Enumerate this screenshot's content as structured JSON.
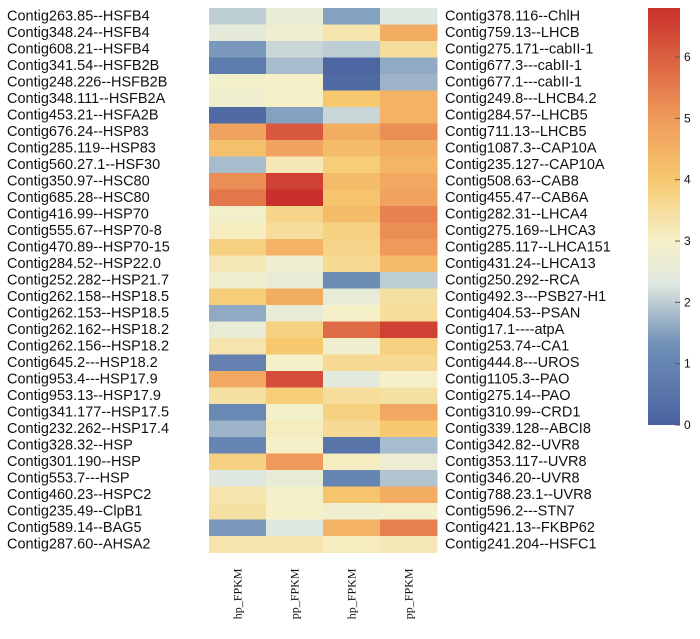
{
  "chart_data": {
    "type": "heatmap",
    "title": "",
    "columns": [
      "hp_FPKM",
      "pp_FPKM",
      "hp_FPKM",
      "pp_FPKM"
    ],
    "color_scale": {
      "min": 0,
      "max": 6.8,
      "ticks": [
        0,
        1,
        2,
        3,
        4,
        5,
        6
      ],
      "stops": [
        {
          "v": 0,
          "color": "#4a63a0"
        },
        {
          "v": 1.3,
          "color": "#6f8fb8"
        },
        {
          "v": 2.3,
          "color": "#dfe8e0"
        },
        {
          "v": 3.0,
          "color": "#f5f0c8"
        },
        {
          "v": 4.0,
          "color": "#f6c96f"
        },
        {
          "v": 5.0,
          "color": "#ef9a5a"
        },
        {
          "v": 6.8,
          "color": "#c9302b"
        }
      ]
    },
    "left_labels": [
      "Contig263.85--HSFB4",
      "Contig348.24--HSFB4",
      "Contig608.21--HSFB4",
      "Contig341.54--HSFB2B",
      "Contig248.226--HSFB2B",
      "Contig348.111--HSFB2A",
      "Contig453.21--HSFA2B",
      "Contig676.24--HSP83",
      "Contig285.119--HSP83",
      "Contig560.27.1--HSF30",
      "Contig350.97--HSC80",
      "Contig685.28--HSC80",
      "Contig416.99--HSP70",
      "Contig555.67--HSP70-8",
      "Contig470.89--HSP70-15",
      "Contig284.52--HSP22.0",
      "Contig252.282--HSP21.7",
      "Contig262.158--HSP18.5",
      "Contig262.153--HSP18.5",
      "Contig262.162--HSP18.2",
      "Contig262.156--HSP18.2",
      "Contig645.2---HSP18.2",
      "Contig953.4---HSP17.9",
      "Contig953.13--HSP17.9",
      "Contig341.177--HSP17.5",
      "Contig232.262--HSP17.4",
      "Contig328.32--HSP",
      "Contig301.190--HSP",
      "Contig553.7---HSP",
      "Contig460.23--HSPC2",
      "Contig235.49--ClpB1",
      "Contig589.14--BAG5",
      "Contig287.60--AHSA2"
    ],
    "right_labels": [
      "Contig378.116--ChlH",
      "Contig759.13--LHCB",
      "Contig275.171--cabII-1",
      "Contig677.3---cabII-1",
      "Contig677.1---cabII-1",
      "Contig249.8---LHCB4.2",
      "Contig284.57--LHCB5",
      "Contig711.13--LHCB5",
      "Contig1087.3--CAP10A",
      "Contig235.127--CAP10A",
      "Contig508.63--CAB8",
      "Contig455.47--CAB6A",
      "Contig282.31--LHCA4",
      "Contig275.169--LHCA3",
      "Contig285.117--LHCA151",
      "Contig431.24--LHCA13",
      "Contig250.292--RCA",
      "Contig492.3---PSB27-H1",
      "Contig404.53--PSAN",
      "Contig17.1----atpA",
      "Contig253.74--CA1",
      "Contig444.8---UROS",
      "Contig1105.3--PAO",
      "Contig275.14--PAO",
      "Contig310.99--CRD1",
      "Contig339.128--ABCI8",
      "Contig342.82--UVR8",
      "Contig353.117--UVR8",
      "Contig346.20--UVR8",
      "Contig788.23.1--UVR8",
      "Contig596.2---STN7",
      "Contig421.13--FKBP62",
      "Contig241.204--HSFC1"
    ],
    "values": [
      [
        2.0,
        2.6,
        1.5,
        2.3
      ],
      [
        2.5,
        2.8,
        3.3,
        4.6
      ],
      [
        1.4,
        2.1,
        2.0,
        3.5
      ],
      [
        0.7,
        1.8,
        0.1,
        1.6
      ],
      [
        2.9,
        3.0,
        0.2,
        1.7
      ],
      [
        2.8,
        3.0,
        4.0,
        4.5
      ],
      [
        0.2,
        1.5,
        2.1,
        4.5
      ],
      [
        4.8,
        6.1,
        4.6,
        5.2
      ],
      [
        4.2,
        4.8,
        4.3,
        4.6
      ],
      [
        1.8,
        3.2,
        3.9,
        4.4
      ],
      [
        5.2,
        6.5,
        4.3,
        4.7
      ],
      [
        5.6,
        6.8,
        4.1,
        4.8
      ],
      [
        2.9,
        3.7,
        4.3,
        5.4
      ],
      [
        3.1,
        3.5,
        3.8,
        5.2
      ],
      [
        3.8,
        4.5,
        3.7,
        5.0
      ],
      [
        3.2,
        2.8,
        3.6,
        4.3
      ],
      [
        2.8,
        2.6,
        1.2,
        2.0
      ],
      [
        3.9,
        4.6,
        2.6,
        3.4
      ],
      [
        1.6,
        2.6,
        3.0,
        3.5
      ],
      [
        2.6,
        3.8,
        5.8,
        6.5
      ],
      [
        3.3,
        4.0,
        2.8,
        3.8
      ],
      [
        0.9,
        3.0,
        3.6,
        3.6
      ],
      [
        4.7,
        6.3,
        2.4,
        3.0
      ],
      [
        3.4,
        3.9,
        3.5,
        3.4
      ],
      [
        1.1,
        2.9,
        3.8,
        4.7
      ],
      [
        1.7,
        3.1,
        3.6,
        4.0
      ],
      [
        1.0,
        3.0,
        0.5,
        1.8
      ],
      [
        3.8,
        5.0,
        3.1,
        2.7
      ],
      [
        2.3,
        2.6,
        1.0,
        1.9
      ],
      [
        3.3,
        2.9,
        4.1,
        4.6
      ],
      [
        3.4,
        3.0,
        2.8,
        2.9
      ],
      [
        1.4,
        2.3,
        4.5,
        5.4
      ],
      [
        3.3,
        3.3,
        3.1,
        3.2
      ]
    ]
  }
}
